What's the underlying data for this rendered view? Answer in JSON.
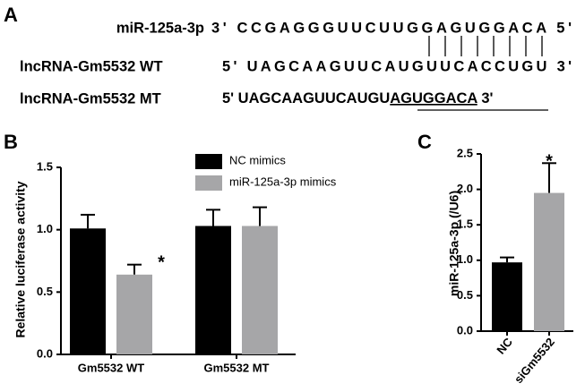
{
  "panel_a": {
    "label": "A",
    "rows": [
      {
        "name": "miR-125a-3p",
        "sequence": [
          "3' CCGAGGGUUCUUGGAGUGGACA 5'"
        ]
      },
      {
        "name": "lncRNA-Gm5532 WT",
        "sequence": [
          "5' UAGCAAGUUCAUGUUCACCUGU 3'"
        ]
      },
      {
        "name": "lncRNA-Gm5532 MT",
        "sequence": [
          "5' UAGCAAGUUCAUGU",
          "AGUGGACA",
          " 3'"
        ]
      }
    ]
  },
  "chart_data": [
    {
      "type": "bar",
      "panel_label": "B",
      "ylabel": "Relative luciferase activity",
      "categories": [
        "Gm5532 WT",
        "Gm5532 MT"
      ],
      "series": [
        {
          "name": "NC mimics",
          "color": "#000000",
          "values": [
            1.01,
            1.03
          ],
          "errors": [
            0.11,
            0.13
          ]
        },
        {
          "name": "miR-125a-3p mimics",
          "color": "#a6a6a8",
          "values": [
            0.64,
            1.03
          ],
          "errors": [
            0.08,
            0.15
          ]
        }
      ],
      "ylim": [
        0,
        1.5
      ],
      "yticks": [
        {
          "value": 0,
          "label": "0.0"
        },
        {
          "value": 0.5,
          "label": "0.5"
        },
        {
          "value": 1,
          "label": "1.0"
        },
        {
          "value": 1.5,
          "label": "1.5"
        }
      ],
      "annotations": [
        "*"
      ]
    },
    {
      "type": "bar",
      "panel_label": "C",
      "ylabel": "miR-125a-3p (/U6)",
      "categories": [
        "NC",
        "siGm5532"
      ],
      "values": [
        0.97,
        1.95
      ],
      "errors": [
        0.07,
        0.42
      ],
      "colors": [
        "#000000",
        "#a6a6a8"
      ],
      "ylim": [
        0,
        2.5
      ],
      "yticks": [
        {
          "value": 0,
          "label": "0.0"
        },
        {
          "value": 0.5,
          "label": "0.5"
        },
        {
          "value": 1,
          "label": "1.0"
        },
        {
          "value": 1.5,
          "label": "1.5"
        },
        {
          "value": 2,
          "label": "2.0"
        },
        {
          "value": 2.5,
          "label": "2.5"
        }
      ],
      "annotations": [
        "*"
      ]
    }
  ]
}
